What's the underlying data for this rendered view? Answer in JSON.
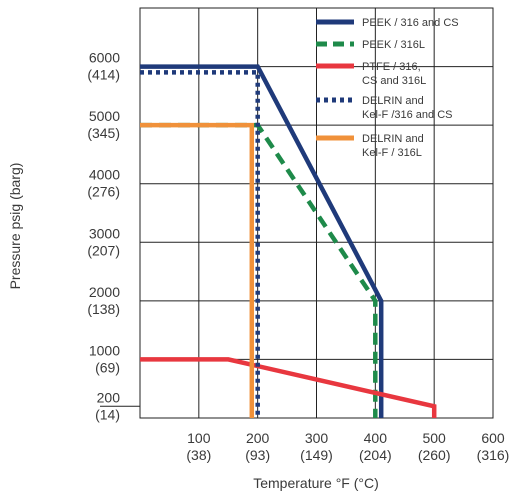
{
  "chart_data": {
    "type": "line",
    "xlabel": "Temperature °F (°C)",
    "ylabel": "Pressure psig (barg)",
    "xlim": [
      0,
      600
    ],
    "ylim": [
      0,
      7000
    ],
    "grid": true,
    "legend_position": "top-right",
    "x_ticks": [
      {
        "value": 100,
        "label": "100",
        "sublabel": "(38)"
      },
      {
        "value": 200,
        "label": "200",
        "sublabel": "(93)"
      },
      {
        "value": 300,
        "label": "300",
        "sublabel": "(149)"
      },
      {
        "value": 400,
        "label": "400",
        "sublabel": "(204)"
      },
      {
        "value": 500,
        "label": "500",
        "sublabel": "(260)"
      },
      {
        "value": 600,
        "label": "600",
        "sublabel": "(316)"
      }
    ],
    "y_ticks": [
      {
        "value": 200,
        "label": "200",
        "sublabel": "(14)"
      },
      {
        "value": 1000,
        "label": "1000",
        "sublabel": "(69)"
      },
      {
        "value": 2000,
        "label": "2000",
        "sublabel": "(138)"
      },
      {
        "value": 3000,
        "label": "3000",
        "sublabel": "(207)"
      },
      {
        "value": 4000,
        "label": "4000",
        "sublabel": "(276)"
      },
      {
        "value": 5000,
        "label": "5000",
        "sublabel": "(345)"
      },
      {
        "value": 6000,
        "label": "6000",
        "sublabel": "(414)"
      }
    ],
    "series": [
      {
        "name": "PEEK / 316 and CS",
        "color": "#1f3a7a",
        "dash": "solid",
        "points": [
          [
            0,
            6000
          ],
          [
            200,
            6000
          ],
          [
            410,
            2000
          ],
          [
            410,
            0
          ]
        ]
      },
      {
        "name": "PEEK / 316L",
        "color": "#1e8a4a",
        "dash": "dashed",
        "points": [
          [
            0,
            5000
          ],
          [
            200,
            5000
          ],
          [
            400,
            2000
          ],
          [
            400,
            0
          ]
        ]
      },
      {
        "name": "PTFE / 316, CS and 316L",
        "color": "#e8373f",
        "dash": "solid",
        "points": [
          [
            0,
            1000
          ],
          [
            150,
            1000
          ],
          [
            500,
            200
          ],
          [
            500,
            0
          ]
        ]
      },
      {
        "name": "DELRIN and Kel-F /316 and CS",
        "color": "#1f3a7a",
        "dash": "dotted",
        "points": [
          [
            0,
            5900
          ],
          [
            200,
            5900
          ],
          [
            200,
            0
          ]
        ]
      },
      {
        "name": "DELRIN and Kel-F / 316L",
        "color": "#f0913a",
        "dash": "solid",
        "points": [
          [
            0,
            5000
          ],
          [
            190,
            5000
          ],
          [
            190,
            0
          ]
        ]
      }
    ],
    "legend": [
      {
        "lines": [
          "PEEK / 316 and CS"
        ]
      },
      {
        "lines": [
          "PEEK / 316L"
        ]
      },
      {
        "lines": [
          "PTFE / 316,",
          "CS and 316L"
        ]
      },
      {
        "lines": [
          "DELRIN and",
          "Kel-F /316 and CS"
        ]
      },
      {
        "lines": [
          "DELRIN and",
          "Kel-F / 316L"
        ]
      }
    ]
  }
}
